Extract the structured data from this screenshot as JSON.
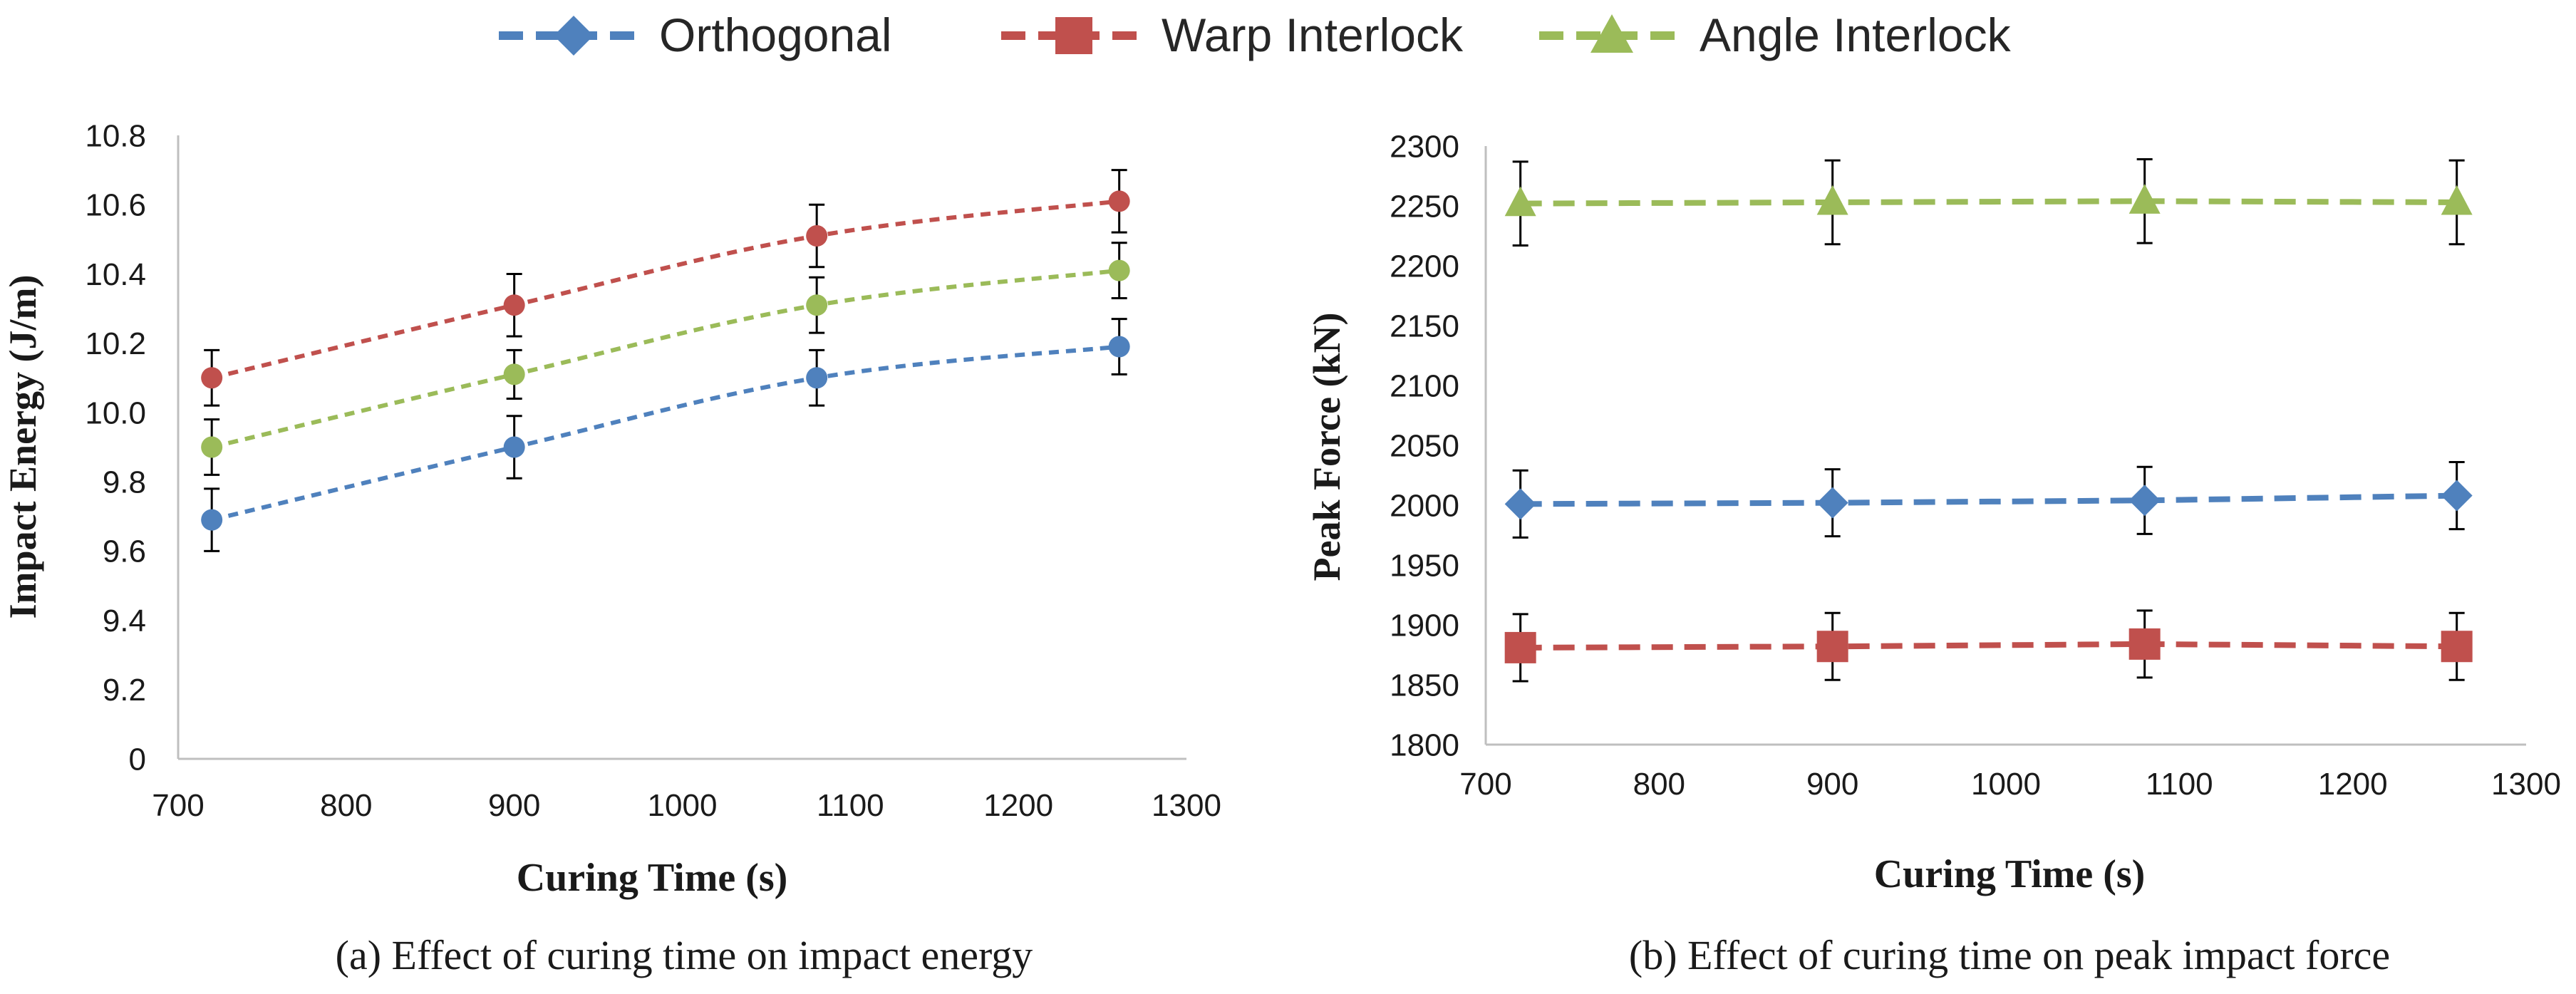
{
  "legend": {
    "position": "top-center",
    "items": [
      {
        "label": "Orthogonal",
        "color": "#4F81BD",
        "marker": "diamond"
      },
      {
        "label": "Warp Interlock",
        "color": "#C0504D",
        "marker": "square"
      },
      {
        "label": "Angle Interlock",
        "color": "#9BBB59",
        "marker": "triangle"
      }
    ]
  },
  "captions": {
    "a": "(a) Effect of curing time on impact energy",
    "b": "(b) Effect of curing time on peak impact force"
  },
  "chart_data": [
    {
      "id": "a",
      "type": "line",
      "title": "",
      "xlabel": "Curing Time (s)",
      "ylabel": "Impact Energy (J/m)",
      "xlim": [
        700,
        1300
      ],
      "xticks": [
        "700",
        "800",
        "900",
        "1000",
        "1100",
        "1200",
        "1300"
      ],
      "ylim": [
        9.0,
        10.8
      ],
      "yticks": [
        "0",
        "9.2",
        "9.4",
        "9.6",
        "9.8",
        "10.0",
        "10.2",
        "10.4",
        "10.6",
        "10.8"
      ],
      "y_axis_break": "lowest tick labeled 0 (axis broken)",
      "grid": false,
      "smooth": true,
      "x": [
        720,
        900,
        1080,
        1260
      ],
      "series": [
        {
          "name": "Orthogonal",
          "color": "#4F81BD",
          "values": [
            9.69,
            9.9,
            10.1,
            10.19
          ],
          "error": [
            0.09,
            0.09,
            0.08,
            0.08
          ]
        },
        {
          "name": "Warp Interlock",
          "color": "#C0504D",
          "values": [
            10.1,
            10.31,
            10.51,
            10.61
          ],
          "error": [
            0.08,
            0.09,
            0.09,
            0.09
          ]
        },
        {
          "name": "Angle Interlock",
          "color": "#9BBB59",
          "values": [
            9.9,
            10.11,
            10.31,
            10.41
          ],
          "error": [
            0.08,
            0.07,
            0.08,
            0.08
          ]
        }
      ]
    },
    {
      "id": "b",
      "type": "line",
      "title": "",
      "xlabel": "Curing Time (s)",
      "ylabel": "Peak Force (kN)",
      "xlim": [
        700,
        1300
      ],
      "xticks": [
        "700",
        "800",
        "900",
        "1000",
        "1100",
        "1200",
        "1300"
      ],
      "ylim": [
        1800,
        2300
      ],
      "yticks": [
        "1800",
        "1850",
        "1900",
        "1950",
        "2000",
        "2050",
        "2100",
        "2150",
        "2200",
        "2250",
        "2300"
      ],
      "grid": false,
      "smooth": false,
      "x": [
        720,
        900,
        1080,
        1260
      ],
      "series": [
        {
          "name": "Orthogonal",
          "color": "#4F81BD",
          "marker": "diamond",
          "values": [
            2001,
            2002,
            2004,
            2008
          ],
          "error": [
            28,
            28,
            28,
            28
          ]
        },
        {
          "name": "Warp Interlock",
          "color": "#C0504D",
          "marker": "square",
          "values": [
            1881,
            1882,
            1884,
            1882
          ],
          "error": [
            28,
            28,
            28,
            28
          ]
        },
        {
          "name": "Angle Interlock",
          "color": "#9BBB59",
          "marker": "triangle",
          "values": [
            2252,
            2253,
            2254,
            2253
          ],
          "error": [
            35,
            35,
            35,
            35
          ]
        }
      ]
    }
  ]
}
